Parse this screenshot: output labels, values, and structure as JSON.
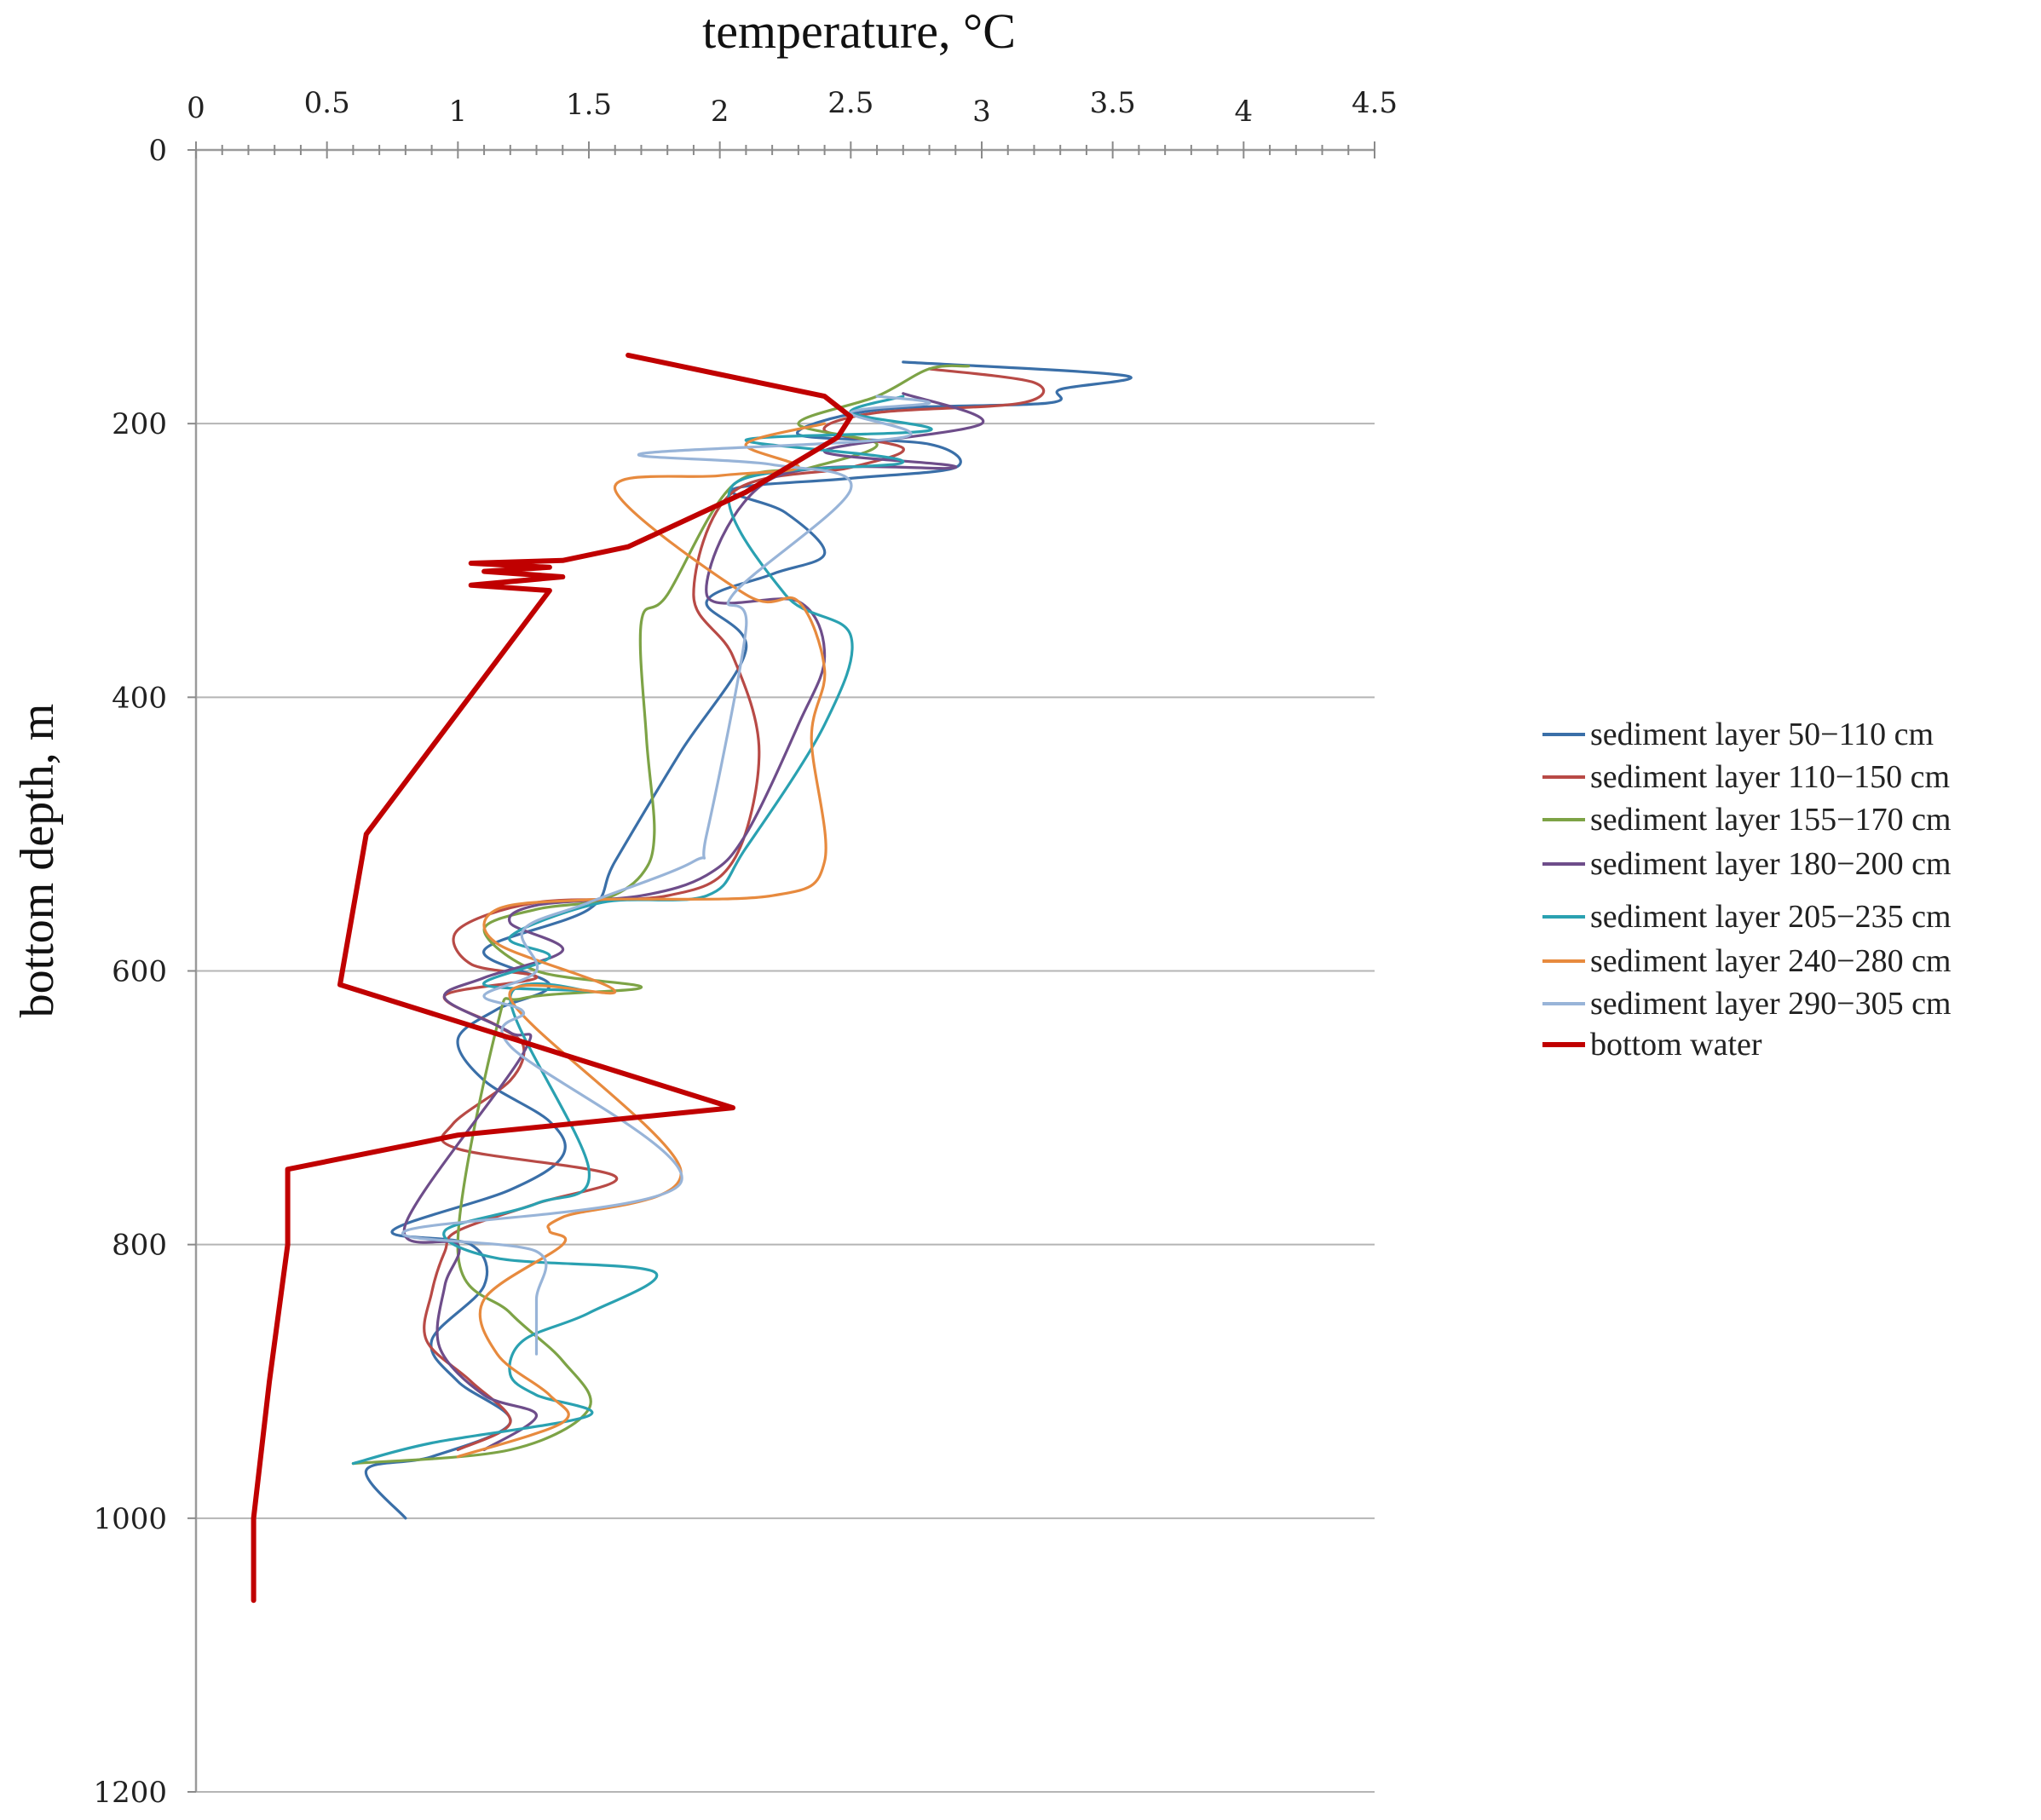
{
  "chart_data": {
    "type": "line",
    "title": "",
    "xlabel": "temperature, °C",
    "ylabel": "bottom depth, m",
    "xlim": [
      0,
      4.5
    ],
    "ylim": [
      0,
      1200
    ],
    "x_axis_position": "top",
    "y_axis_inverted": true,
    "x_ticks": [
      0,
      0.5,
      1,
      1.5,
      2,
      2.5,
      3,
      3.5,
      4,
      4.5
    ],
    "x_tick_labels": [
      "0",
      "0.5",
      "1",
      "1.5",
      "2",
      "2.5",
      "3",
      "3.5",
      "4",
      "4.5"
    ],
    "y_ticks": [
      0,
      200,
      400,
      600,
      800,
      1000,
      1200
    ],
    "y_tick_labels": [
      "0",
      "200",
      "400",
      "600",
      "800",
      "1000",
      "1200"
    ],
    "grid": "horizontal",
    "legend_position": "right",
    "series": [
      {
        "name": "sediment layer 50−110 cm",
        "color": "#3a6fa8",
        "points": [
          [
            2.7,
            155
          ],
          [
            3.55,
            165
          ],
          [
            3.3,
            175
          ],
          [
            3.25,
            185
          ],
          [
            2.6,
            190
          ],
          [
            2.3,
            208
          ],
          [
            2.8,
            215
          ],
          [
            2.9,
            232
          ],
          [
            2.5,
            240
          ],
          [
            2.05,
            248
          ],
          [
            2.25,
            265
          ],
          [
            2.4,
            295
          ],
          [
            2.2,
            310
          ],
          [
            1.95,
            330
          ],
          [
            2.1,
            365
          ],
          [
            1.85,
            440
          ],
          [
            1.6,
            520
          ],
          [
            1.5,
            555
          ],
          [
            1.1,
            585
          ],
          [
            1.35,
            610
          ],
          [
            1.15,
            628
          ],
          [
            1.0,
            650
          ],
          [
            1.1,
            680
          ],
          [
            1.35,
            710
          ],
          [
            1.4,
            735
          ],
          [
            1.2,
            760
          ],
          [
            0.75,
            790
          ],
          [
            1.05,
            800
          ],
          [
            1.1,
            830
          ],
          [
            0.9,
            870
          ],
          [
            1.0,
            900
          ],
          [
            1.2,
            930
          ],
          [
            0.9,
            955
          ],
          [
            0.65,
            965
          ],
          [
            0.8,
            1000
          ]
        ]
      },
      {
        "name": "sediment layer 110−150 cm",
        "color": "#b84a46",
        "points": [
          [
            2.8,
            160
          ],
          [
            3.2,
            170
          ],
          [
            3.15,
            185
          ],
          [
            2.6,
            192
          ],
          [
            2.4,
            205
          ],
          [
            2.7,
            218
          ],
          [
            2.5,
            232
          ],
          [
            2.05,
            250
          ],
          [
            1.9,
            325
          ],
          [
            2.05,
            370
          ],
          [
            2.15,
            440
          ],
          [
            2.05,
            520
          ],
          [
            1.8,
            545
          ],
          [
            1.3,
            550
          ],
          [
            1.0,
            570
          ],
          [
            1.05,
            595
          ],
          [
            1.3,
            605
          ],
          [
            0.95,
            618
          ],
          [
            1.15,
            640
          ],
          [
            1.25,
            655
          ],
          [
            1.2,
            680
          ],
          [
            0.98,
            712
          ],
          [
            1.0,
            730
          ],
          [
            1.6,
            750
          ],
          [
            1.3,
            770
          ],
          [
            1.0,
            790
          ],
          [
            0.95,
            805
          ],
          [
            0.9,
            835
          ],
          [
            0.88,
            870
          ],
          [
            1.05,
            900
          ],
          [
            1.2,
            930
          ],
          [
            1.0,
            950
          ]
        ]
      },
      {
        "name": "sediment layer 155−170 cm",
        "color": "#7da346",
        "points": [
          [
            2.95,
            158
          ],
          [
            2.8,
            160
          ],
          [
            2.6,
            180
          ],
          [
            2.3,
            200
          ],
          [
            2.6,
            215
          ],
          [
            2.35,
            232
          ],
          [
            2.05,
            245
          ],
          [
            1.8,
            325
          ],
          [
            1.7,
            345
          ],
          [
            1.72,
            430
          ],
          [
            1.75,
            500
          ],
          [
            1.7,
            530
          ],
          [
            1.55,
            548
          ],
          [
            1.3,
            555
          ],
          [
            1.1,
            570
          ],
          [
            1.3,
            600
          ],
          [
            1.7,
            612
          ],
          [
            1.25,
            620
          ],
          [
            1.15,
            640
          ],
          [
            1.0,
            805
          ],
          [
            1.2,
            850
          ],
          [
            1.4,
            885
          ],
          [
            1.5,
            920
          ],
          [
            1.2,
            950
          ],
          [
            0.6,
            960
          ]
        ]
      },
      {
        "name": "sediment layer 180−200 cm",
        "color": "#6e4d8a",
        "points": [
          [
            2.7,
            178
          ],
          [
            3.0,
            200
          ],
          [
            2.4,
            220
          ],
          [
            2.9,
            232
          ],
          [
            2.2,
            240
          ],
          [
            1.95,
            325
          ],
          [
            2.3,
            330
          ],
          [
            2.4,
            370
          ],
          [
            2.3,
            420
          ],
          [
            2.1,
            500
          ],
          [
            1.95,
            530
          ],
          [
            1.7,
            545
          ],
          [
            1.3,
            552
          ],
          [
            1.2,
            565
          ],
          [
            1.4,
            585
          ],
          [
            1.1,
            605
          ],
          [
            0.95,
            620
          ],
          [
            1.2,
            645
          ],
          [
            1.25,
            660
          ],
          [
            0.8,
            785
          ],
          [
            1.0,
            800
          ],
          [
            0.95,
            830
          ],
          [
            0.93,
            875
          ],
          [
            1.1,
            910
          ],
          [
            1.3,
            925
          ],
          [
            1.1,
            950
          ]
        ]
      },
      {
        "name": "sediment layer 205−235 cm",
        "color": "#2aa1b1",
        "points": [
          [
            2.7,
            180
          ],
          [
            2.5,
            192
          ],
          [
            2.8,
            205
          ],
          [
            2.1,
            212
          ],
          [
            2.7,
            228
          ],
          [
            2.05,
            245
          ],
          [
            2.25,
            325
          ],
          [
            2.5,
            355
          ],
          [
            2.4,
            420
          ],
          [
            2.1,
            510
          ],
          [
            1.95,
            545
          ],
          [
            1.55,
            550
          ],
          [
            1.2,
            575
          ],
          [
            1.35,
            590
          ],
          [
            1.1,
            610
          ],
          [
            1.5,
            615
          ],
          [
            1.2,
            620
          ],
          [
            1.5,
            745
          ],
          [
            1.3,
            770
          ],
          [
            0.95,
            790
          ],
          [
            1.15,
            810
          ],
          [
            1.75,
            820
          ],
          [
            1.5,
            850
          ],
          [
            1.25,
            870
          ],
          [
            1.2,
            895
          ],
          [
            1.3,
            910
          ],
          [
            1.5,
            925
          ],
          [
            0.9,
            945
          ],
          [
            0.6,
            960
          ]
        ]
      },
      {
        "name": "sediment layer 240−280 cm",
        "color": "#e78a3e",
        "points": [
          [
            2.4,
            200
          ],
          [
            2.1,
            215
          ],
          [
            2.3,
            232
          ],
          [
            2.0,
            238
          ],
          [
            1.6,
            248
          ],
          [
            2.1,
            325
          ],
          [
            2.3,
            330
          ],
          [
            2.4,
            380
          ],
          [
            2.35,
            430
          ],
          [
            2.4,
            520
          ],
          [
            2.2,
            545
          ],
          [
            1.5,
            548
          ],
          [
            1.15,
            555
          ],
          [
            1.15,
            580
          ],
          [
            1.6,
            615
          ],
          [
            1.2,
            620
          ],
          [
            1.85,
            745
          ],
          [
            1.4,
            780
          ],
          [
            1.35,
            790
          ],
          [
            1.4,
            800
          ],
          [
            1.1,
            840
          ],
          [
            1.15,
            880
          ],
          [
            1.35,
            910
          ],
          [
            1.4,
            930
          ],
          [
            1.0,
            955
          ]
        ]
      },
      {
        "name": "sediment layer 290−305 cm",
        "color": "#98b4d8",
        "points": [
          [
            2.6,
            180
          ],
          [
            2.8,
            185
          ],
          [
            2.5,
            192
          ],
          [
            2.7,
            210
          ],
          [
            1.7,
            222
          ],
          [
            2.2,
            230
          ],
          [
            2.5,
            248
          ],
          [
            2.05,
            325
          ],
          [
            2.1,
            350
          ],
          [
            1.95,
            500
          ],
          [
            1.9,
            520
          ],
          [
            1.5,
            550
          ],
          [
            1.25,
            570
          ],
          [
            1.3,
            600
          ],
          [
            1.1,
            618
          ],
          [
            1.25,
            630
          ],
          [
            1.2,
            655
          ],
          [
            1.85,
            755
          ],
          [
            0.8,
            790
          ],
          [
            1.3,
            805
          ],
          [
            1.3,
            840
          ],
          [
            1.3,
            880
          ]
        ]
      },
      {
        "name": "bottom water",
        "color": "#c00000",
        "points": [
          [
            1.65,
            150
          ],
          [
            2.4,
            180
          ],
          [
            2.5,
            195
          ],
          [
            2.45,
            210
          ],
          [
            2.1,
            250
          ],
          [
            1.65,
            290
          ],
          [
            1.4,
            300
          ],
          [
            1.05,
            302
          ],
          [
            1.35,
            305
          ],
          [
            1.1,
            308
          ],
          [
            1.4,
            312
          ],
          [
            1.05,
            318
          ],
          [
            1.35,
            322
          ],
          [
            0.65,
            500
          ],
          [
            0.55,
            610
          ],
          [
            2.05,
            700
          ],
          [
            1.0,
            720
          ],
          [
            0.35,
            745
          ],
          [
            0.35,
            800
          ],
          [
            0.28,
            900
          ],
          [
            0.22,
            1000
          ],
          [
            0.22,
            1060
          ]
        ]
      }
    ]
  }
}
